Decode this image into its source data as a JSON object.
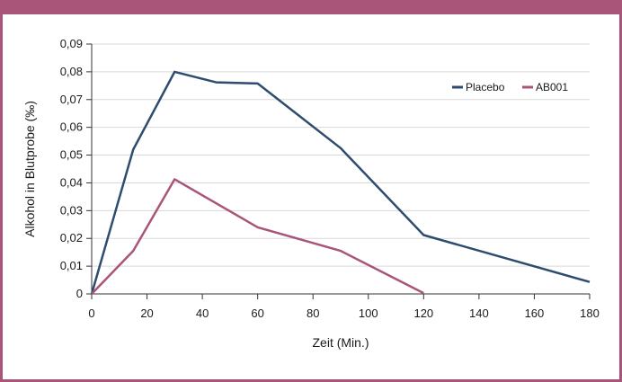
{
  "colors": {
    "frame": "#a9557a",
    "grid": "#d9d9d9",
    "axis": "#333333",
    "placebo": "#2e4d6e",
    "ab001": "#a9557a"
  },
  "chart_data": {
    "type": "line",
    "title": "",
    "xlabel": "Zeit (Min.)",
    "ylabel": "Alkohol in Blutprobe (‰)",
    "xlim": [
      0,
      180
    ],
    "ylim": [
      0,
      0.09
    ],
    "x_ticks": [
      0,
      20,
      40,
      60,
      80,
      100,
      120,
      140,
      160,
      180
    ],
    "y_ticks": [
      0,
      0.01,
      0.02,
      0.03,
      0.04,
      0.05,
      0.06,
      0.07,
      0.08,
      0.09
    ],
    "y_tick_labels": [
      "0",
      "0,01",
      "0,02",
      "0,03",
      "0,04",
      "0,05",
      "0,06",
      "0,07",
      "0,08",
      "0,09"
    ],
    "grid": "horizontal",
    "legend_position": "right",
    "series": [
      {
        "name": "Placebo",
        "color": "#2e4d6e",
        "points": [
          [
            0,
            0.0
          ],
          [
            15,
            0.052
          ],
          [
            30,
            0.08
          ],
          [
            45,
            0.0762
          ],
          [
            60,
            0.0758
          ],
          [
            90,
            0.0525
          ],
          [
            120,
            0.0212
          ],
          [
            180,
            0.0043
          ]
        ]
      },
      {
        "name": "AB001",
        "color": "#a9557a",
        "points": [
          [
            0,
            0.0
          ],
          [
            15,
            0.0155
          ],
          [
            30,
            0.0413
          ],
          [
            60,
            0.024
          ],
          [
            90,
            0.0155
          ],
          [
            120,
            0.0003
          ]
        ]
      }
    ]
  }
}
